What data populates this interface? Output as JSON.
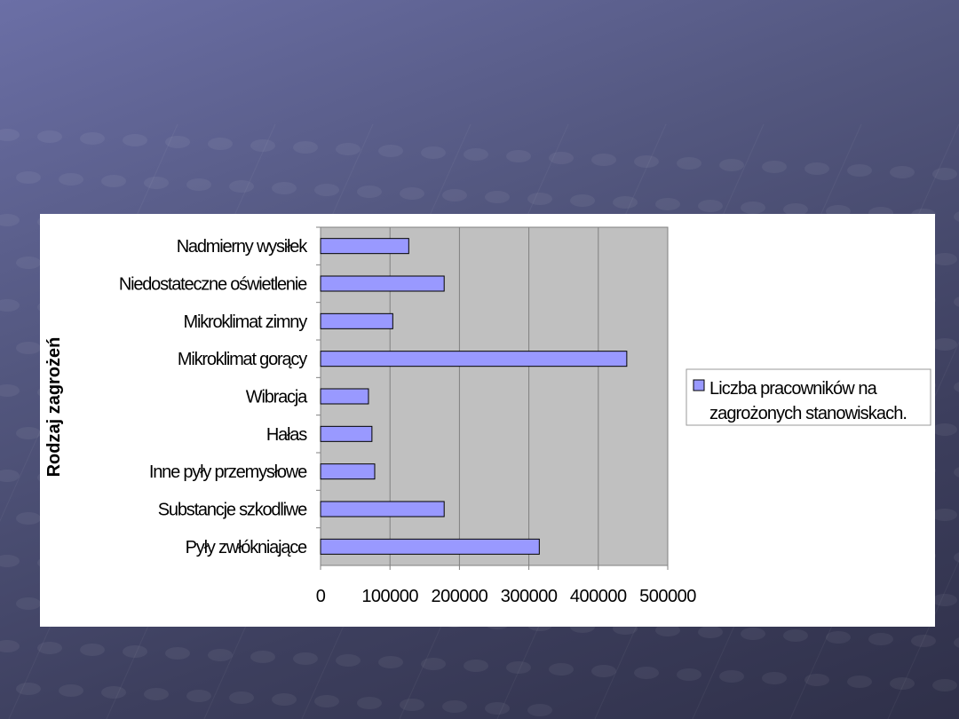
{
  "chart_data": {
    "type": "bar",
    "orientation": "horizontal",
    "ylabel": "Rodzaj zagrożeń",
    "categories": [
      "Nadmierny wysiłek",
      "Niedostateczne oświetlenie",
      "Mikroklimat zimny",
      "Mikroklimat gorący",
      "Wibracja",
      "Hałas",
      "Inne pyły przemysłowe",
      "Substancje szkodliwe",
      "Pyły zwłókniające"
    ],
    "series": [
      {
        "name": "Liczba pracowników na zagrożonych stanowiskach.",
        "color": "#9999ff",
        "values": [
          127000,
          178000,
          104000,
          441000,
          69000,
          74000,
          78000,
          178000,
          315000
        ]
      }
    ],
    "xlim": [
      0,
      500000
    ],
    "xticks": [
      "0",
      "100000",
      "200000",
      "300000",
      "400000",
      "500000"
    ],
    "grid": true,
    "plot_background": "#c0c0c0",
    "legend": {
      "position": "right",
      "lines": [
        "Liczba pracowników na",
        "zagrożonych stanowiskach."
      ]
    }
  }
}
